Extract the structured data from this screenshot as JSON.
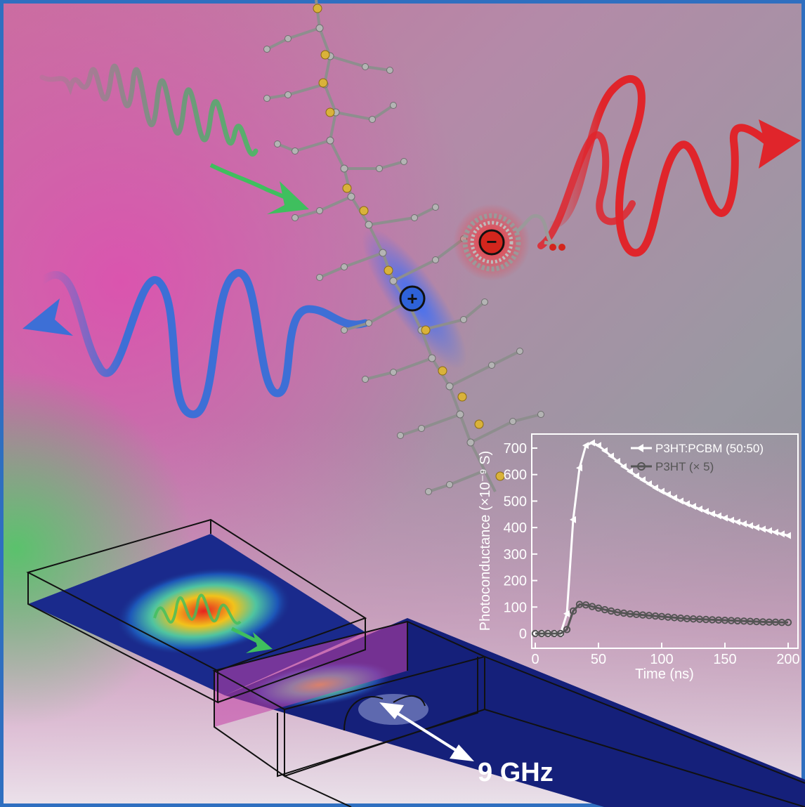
{
  "scene": {
    "frequency_label": "9 GHz",
    "charges": {
      "positive": "+",
      "negative": "−"
    },
    "colors": {
      "frame_blue": "#2f6fc0",
      "blue_wave": "#3d6fd6",
      "red_wave": "#e0252b",
      "green_pulse": "#3fae5c",
      "carbon": "#b0b0b0",
      "sulfur": "#d9b23a"
    }
  },
  "chart_data": {
    "type": "line",
    "title": "",
    "xlabel": "Time (ns)",
    "ylabel": "Photoconductance (×10⁻⁹ S)",
    "xlim": [
      0,
      200
    ],
    "ylim": [
      0,
      700
    ],
    "xticks": [
      "0",
      "50",
      "100",
      "150",
      "200"
    ],
    "yticks": [
      "0",
      "100",
      "200",
      "300",
      "400",
      "500",
      "600",
      "700"
    ],
    "legend_position": "top-right",
    "series": [
      {
        "name": "P3HT:PCBM (50:50)",
        "color": "#ffffff",
        "marker": "triangle-left",
        "x": [
          0,
          5,
          10,
          15,
          20,
          25,
          30,
          35,
          40,
          45,
          50,
          55,
          60,
          65,
          70,
          75,
          80,
          85,
          90,
          95,
          100,
          105,
          110,
          115,
          120,
          125,
          130,
          135,
          140,
          145,
          150,
          155,
          160,
          165,
          170,
          175,
          180,
          185,
          190,
          195,
          200
        ],
        "values": [
          0,
          0,
          0,
          0,
          0,
          75,
          430,
          625,
          710,
          720,
          710,
          690,
          670,
          650,
          630,
          612,
          595,
          580,
          565,
          550,
          537,
          525,
          512,
          500,
          490,
          480,
          470,
          461,
          452,
          444,
          436,
          428,
          421,
          414,
          407,
          400,
          394,
          388,
          382,
          376,
          370
        ]
      },
      {
        "name": "P3HT (× 5)",
        "color": "#555555",
        "marker": "circle-open",
        "x": [
          0,
          5,
          10,
          15,
          20,
          25,
          30,
          35,
          40,
          45,
          50,
          55,
          60,
          65,
          70,
          75,
          80,
          85,
          90,
          95,
          100,
          105,
          110,
          115,
          120,
          125,
          130,
          135,
          140,
          145,
          150,
          155,
          160,
          165,
          170,
          175,
          180,
          185,
          190,
          195,
          200
        ],
        "values": [
          0,
          0,
          0,
          0,
          0,
          15,
          85,
          110,
          108,
          102,
          96,
          90,
          85,
          80,
          77,
          74,
          72,
          70,
          68,
          66,
          64,
          62,
          60,
          58,
          56,
          55,
          54,
          53,
          52,
          51,
          50,
          49,
          48,
          47,
          46,
          45,
          44,
          43,
          43,
          42,
          42
        ]
      }
    ]
  }
}
